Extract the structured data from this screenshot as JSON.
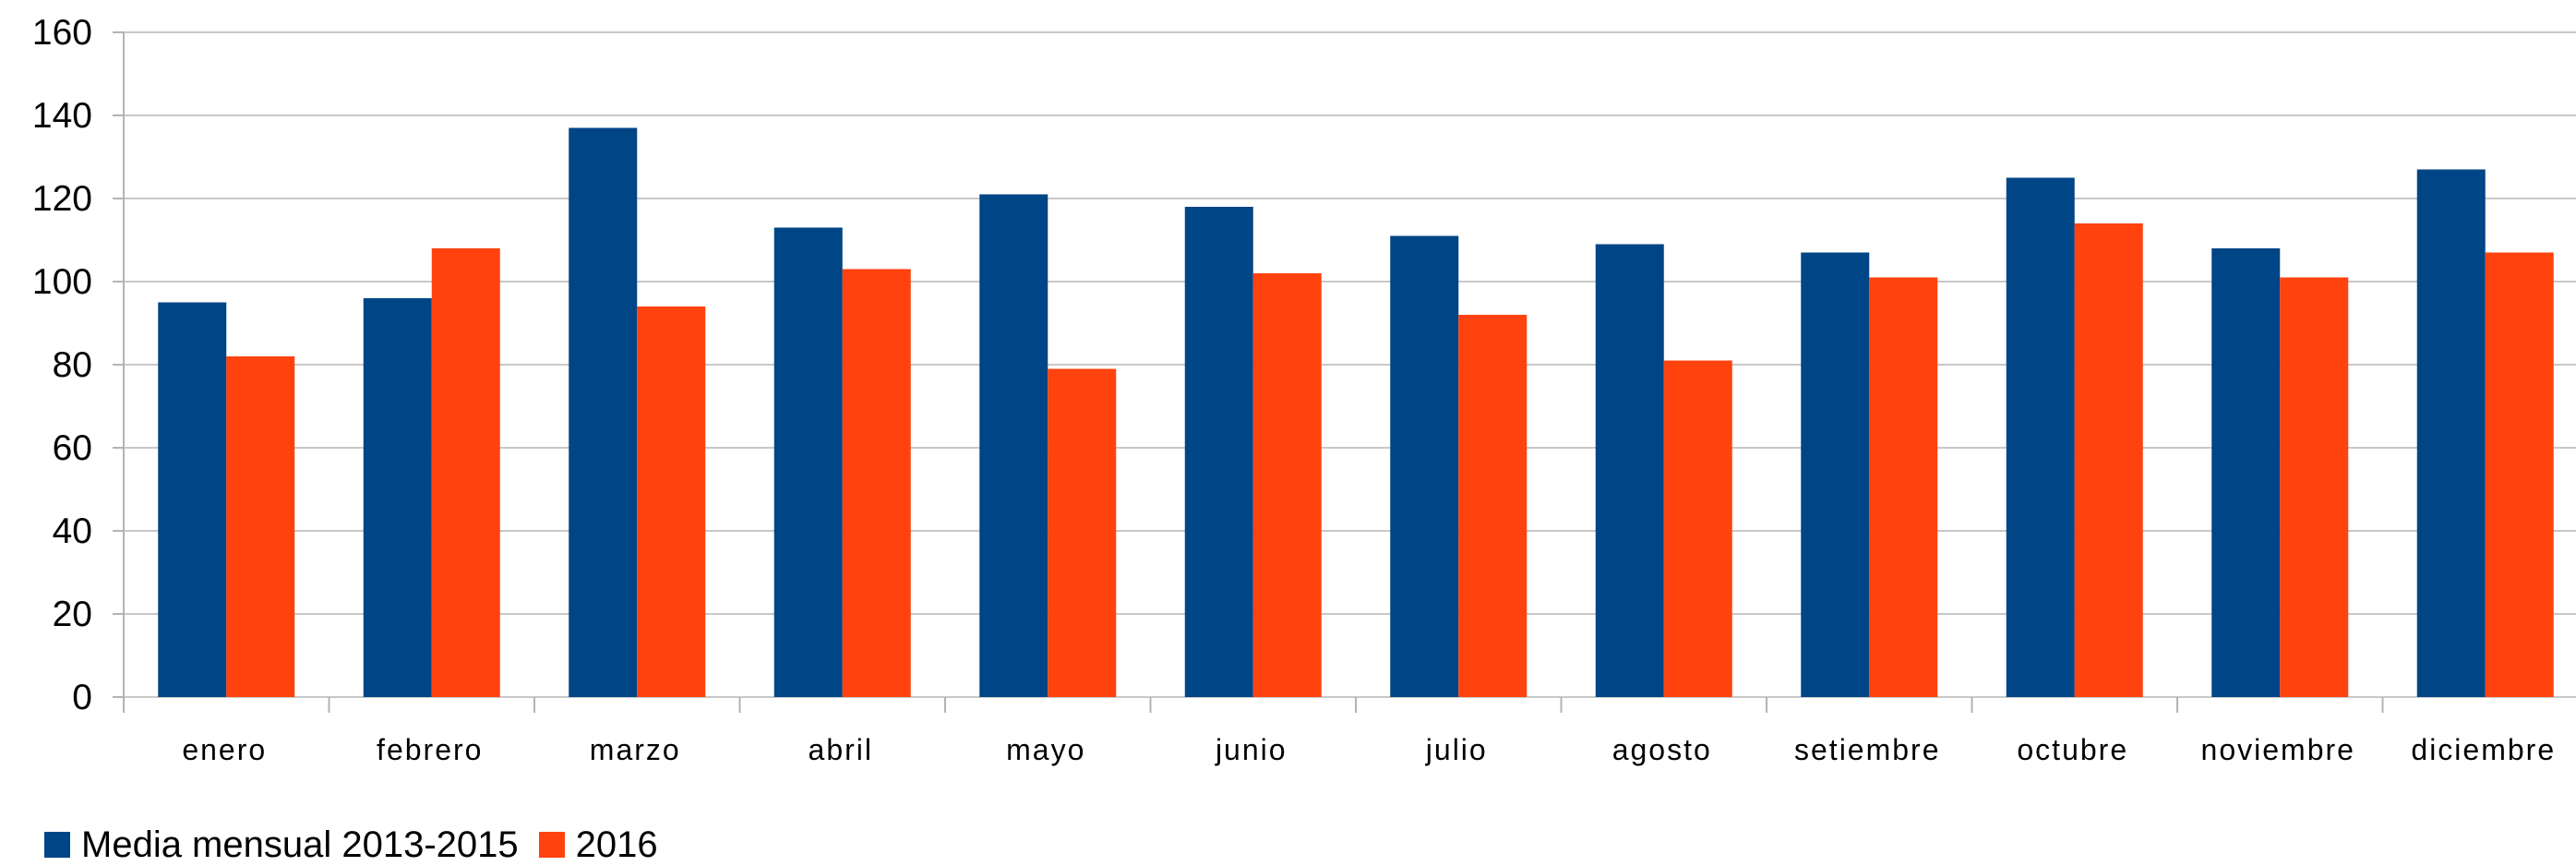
{
  "chart_data": {
    "type": "bar",
    "categories": [
      "enero",
      "febrero",
      "marzo",
      "abril",
      "mayo",
      "junio",
      "julio",
      "agosto",
      "setiembre",
      "octubre",
      "noviembre",
      "diciembre"
    ],
    "series": [
      {
        "name": "Media mensual 2013-2015",
        "color": "#004586",
        "values": [
          95,
          96,
          137,
          113,
          121,
          118,
          111,
          109,
          107,
          125,
          108,
          127
        ]
      },
      {
        "name": "2016",
        "color": "#ff420e",
        "values": [
          82,
          108,
          94,
          103,
          79,
          102,
          92,
          81,
          101,
          114,
          101,
          107
        ]
      }
    ],
    "ylim": [
      0,
      160
    ],
    "yticks": [
      0,
      20,
      40,
      60,
      80,
      100,
      120,
      140,
      160
    ],
    "grid": true,
    "legend_position": "bottom-left"
  }
}
